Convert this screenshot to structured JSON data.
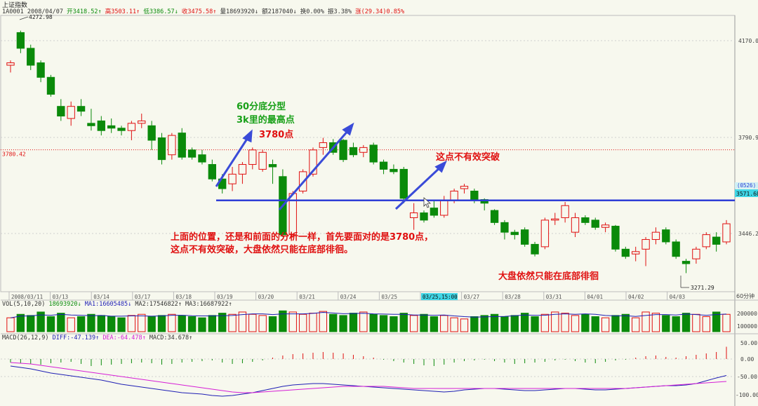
{
  "header": {
    "title": "上证指数",
    "code": "1A0001",
    "date": "2008/04/07",
    "open": "开3418.52↑",
    "high": "高3503.11↑",
    "low": "低3386.57↓",
    "close": "收3475.58↑",
    "volume": "量18693920↓",
    "amount": "额2187040↓",
    "turnover": "换0.00%",
    "amplitude": "振3.38%",
    "change": "涨(29.34)0.85%"
  },
  "price_axis": {
    "ticks": [
      "4170.0",
      "3790.9",
      "3446.2"
    ],
    "ref_label": "3780.42",
    "line_label_top": "(0526)",
    "line_label_value": "3571.68",
    "period": "60分钟"
  },
  "annotations": {
    "a1": "60分底分型",
    "a2": "3k里的最高点",
    "a3": "3780点",
    "a4": "这点不有效突破",
    "a5_line1": "上面的位置，还是和前面的分析一样，首先要面对的是3780点，",
    "a5_line2": "这点不有效突破，大盘依然只能在底部徘徊。",
    "a6": "大盘依然只能在底部徘徊",
    "high_label": "4272.98",
    "low_label": "3271.29"
  },
  "time_axis": [
    "2008/03/11",
    "03/13",
    "03/14",
    "03/17",
    "03/18",
    "03/19",
    "03/20",
    "03/21",
    "03/24",
    "03/25",
    "03/25,15:00",
    "03/27",
    "03/28",
    "03/31",
    "04/01",
    "04/02",
    "04/03"
  ],
  "vol_header": {
    "title": "VOL(5,10,20)",
    "v": "18693920↓",
    "ma1": "MA1:16605485↓",
    "ma2": "MA2:17546822↑",
    "ma3": "MA3:16687922↑",
    "ticks": [
      "200000",
      "100000"
    ]
  },
  "macd_header": {
    "title": "MACD(26,12,9)",
    "diff": "DIFF:-47.139↑",
    "dea": "DEA:-64.478↑",
    "macd": "MACD:34.678↑",
    "ticks": [
      "50.00",
      "0.00",
      "-50.00",
      "-100.00"
    ]
  },
  "colors": {
    "up": "#e01010",
    "down": "#0a8a0a",
    "trendline": "#2f3ed6",
    "ma1": "#1e1eb4",
    "ma2": "#d61ed6",
    "ann_green": "#18a018",
    "ann_red": "#e01010"
  },
  "chart_data": {
    "type": "candlestick",
    "title": "上证指数",
    "y_range": [
      3200,
      4330
    ],
    "candles": [
      {
        "o": 4130,
        "h": 4150,
        "l": 4100,
        "c": 4140
      },
      {
        "o": 4265,
        "h": 4273,
        "l": 4180,
        "c": 4200
      },
      {
        "o": 4200,
        "h": 4215,
        "l": 4110,
        "c": 4130
      },
      {
        "o": 4140,
        "h": 4150,
        "l": 4060,
        "c": 4080
      },
      {
        "o": 4080,
        "h": 4090,
        "l": 4000,
        "c": 4010
      },
      {
        "o": 3960,
        "h": 3990,
        "l": 3900,
        "c": 3920
      },
      {
        "o": 3910,
        "h": 3980,
        "l": 3880,
        "c": 3960
      },
      {
        "o": 3960,
        "h": 3990,
        "l": 3920,
        "c": 3940
      },
      {
        "o": 3890,
        "h": 3950,
        "l": 3860,
        "c": 3880
      },
      {
        "o": 3900,
        "h": 3920,
        "l": 3840,
        "c": 3860
      },
      {
        "o": 3880,
        "h": 3910,
        "l": 3850,
        "c": 3870
      },
      {
        "o": 3870,
        "h": 3880,
        "l": 3840,
        "c": 3860
      },
      {
        "o": 3860,
        "h": 3900,
        "l": 3820,
        "c": 3890
      },
      {
        "o": 3890,
        "h": 3930,
        "l": 3870,
        "c": 3900
      },
      {
        "o": 3880,
        "h": 3900,
        "l": 3780,
        "c": 3820
      },
      {
        "o": 3830,
        "h": 3850,
        "l": 3720,
        "c": 3740
      },
      {
        "o": 3760,
        "h": 3850,
        "l": 3740,
        "c": 3840
      },
      {
        "o": 3850,
        "h": 3870,
        "l": 3740,
        "c": 3750
      },
      {
        "o": 3780,
        "h": 3790,
        "l": 3740,
        "c": 3750
      },
      {
        "o": 3760,
        "h": 3780,
        "l": 3720,
        "c": 3730
      },
      {
        "o": 3720,
        "h": 3740,
        "l": 3650,
        "c": 3660
      },
      {
        "o": 3660,
        "h": 3680,
        "l": 3600,
        "c": 3620
      },
      {
        "o": 3640,
        "h": 3710,
        "l": 3610,
        "c": 3680
      },
      {
        "o": 3680,
        "h": 3730,
        "l": 3640,
        "c": 3720
      },
      {
        "o": 3720,
        "h": 3790,
        "l": 3700,
        "c": 3780
      },
      {
        "o": 3700,
        "h": 3780,
        "l": 3690,
        "c": 3770
      },
      {
        "o": 3720,
        "h": 3740,
        "l": 3640,
        "c": 3710
      },
      {
        "o": 3670,
        "h": 3700,
        "l": 3420,
        "c": 3430
      },
      {
        "o": 3430,
        "h": 3610,
        "l": 3420,
        "c": 3600
      },
      {
        "o": 3610,
        "h": 3700,
        "l": 3600,
        "c": 3690
      },
      {
        "o": 3680,
        "h": 3790,
        "l": 3670,
        "c": 3780
      },
      {
        "o": 3790,
        "h": 3830,
        "l": 3760,
        "c": 3810
      },
      {
        "o": 3810,
        "h": 3825,
        "l": 3760,
        "c": 3770
      },
      {
        "o": 3820,
        "h": 3825,
        "l": 3730,
        "c": 3740
      },
      {
        "o": 3790,
        "h": 3810,
        "l": 3750,
        "c": 3760
      },
      {
        "o": 3770,
        "h": 3800,
        "l": 3750,
        "c": 3790
      },
      {
        "o": 3800,
        "h": 3810,
        "l": 3720,
        "c": 3730
      },
      {
        "o": 3730,
        "h": 3740,
        "l": 3680,
        "c": 3700
      },
      {
        "o": 3700,
        "h": 3720,
        "l": 3680,
        "c": 3690
      },
      {
        "o": 3700,
        "h": 3710,
        "l": 3560,
        "c": 3580
      },
      {
        "o": 3500,
        "h": 3560,
        "l": 3450,
        "c": 3520
      },
      {
        "o": 3520,
        "h": 3530,
        "l": 3480,
        "c": 3490
      },
      {
        "o": 3540,
        "h": 3570,
        "l": 3500,
        "c": 3510
      },
      {
        "o": 3510,
        "h": 3590,
        "l": 3500,
        "c": 3570
      },
      {
        "o": 3570,
        "h": 3620,
        "l": 3560,
        "c": 3610
      },
      {
        "o": 3620,
        "h": 3640,
        "l": 3600,
        "c": 3630
      },
      {
        "o": 3610,
        "h": 3620,
        "l": 3560,
        "c": 3575
      },
      {
        "o": 3575,
        "h": 3580,
        "l": 3530,
        "c": 3560
      },
      {
        "o": 3530,
        "h": 3535,
        "l": 3470,
        "c": 3480
      },
      {
        "o": 3480,
        "h": 3490,
        "l": 3410,
        "c": 3440
      },
      {
        "o": 3440,
        "h": 3450,
        "l": 3410,
        "c": 3430
      },
      {
        "o": 3450,
        "h": 3460,
        "l": 3380,
        "c": 3390
      },
      {
        "o": 3390,
        "h": 3400,
        "l": 3340,
        "c": 3350
      },
      {
        "o": 3380,
        "h": 3500,
        "l": 3370,
        "c": 3490
      },
      {
        "o": 3490,
        "h": 3520,
        "l": 3470,
        "c": 3495
      },
      {
        "o": 3500,
        "h": 3565,
        "l": 3480,
        "c": 3550
      },
      {
        "o": 3440,
        "h": 3520,
        "l": 3420,
        "c": 3500
      },
      {
        "o": 3500,
        "h": 3510,
        "l": 3470,
        "c": 3480
      },
      {
        "o": 3490,
        "h": 3500,
        "l": 3450,
        "c": 3460
      },
      {
        "o": 3460,
        "h": 3480,
        "l": 3440,
        "c": 3470
      },
      {
        "o": 3465,
        "h": 3470,
        "l": 3360,
        "c": 3370
      },
      {
        "o": 3370,
        "h": 3380,
        "l": 3330,
        "c": 3340
      },
      {
        "o": 3350,
        "h": 3380,
        "l": 3320,
        "c": 3360
      },
      {
        "o": 3370,
        "h": 3420,
        "l": 3300,
        "c": 3410
      },
      {
        "o": 3410,
        "h": 3460,
        "l": 3390,
        "c": 3440
      },
      {
        "o": 3450,
        "h": 3460,
        "l": 3390,
        "c": 3400
      },
      {
        "o": 3400,
        "h": 3410,
        "l": 3330,
        "c": 3340
      },
      {
        "o": 3320,
        "h": 3330,
        "l": 3271,
        "c": 3310
      },
      {
        "o": 3330,
        "h": 3380,
        "l": 3310,
        "c": 3370
      },
      {
        "o": 3380,
        "h": 3440,
        "l": 3370,
        "c": 3430
      },
      {
        "o": 3420,
        "h": 3440,
        "l": 3360,
        "c": 3390
      },
      {
        "o": 3400,
        "h": 3490,
        "l": 3390,
        "c": 3475
      }
    ],
    "horizontal_line": 3571.68,
    "reference_line": 3780.42,
    "volume": [
      120,
      150,
      140,
      170,
      130,
      160,
      120,
      130,
      150,
      140,
      130,
      120,
      140,
      150,
      130,
      140,
      150,
      140,
      130,
      120,
      140,
      160,
      150,
      170,
      150,
      140,
      130,
      180,
      170,
      150,
      160,
      175,
      150,
      140,
      160,
      170,
      150,
      140,
      130,
      160,
      140,
      150,
      130,
      140,
      120,
      110,
      130,
      140,
      150,
      130,
      140,
      160,
      130,
      150,
      170,
      160,
      140,
      150,
      130,
      120,
      140,
      150,
      120,
      170,
      160,
      140,
      130,
      160,
      150,
      130,
      170,
      150
    ],
    "macd_hist": [
      -10,
      -12,
      -14,
      -16,
      -12,
      -10,
      -8,
      -14,
      -20,
      -18,
      -16,
      -14,
      -12,
      -10,
      -12,
      -16,
      -14,
      -10,
      -8,
      -6,
      -4,
      -10,
      -14,
      -12,
      -8,
      -4,
      4,
      10,
      14,
      16,
      18,
      20,
      18,
      16,
      12,
      8,
      4,
      -2,
      -6,
      -10,
      -14,
      -18,
      -20,
      -16,
      -10,
      -6,
      -4,
      -2,
      -6,
      -10,
      -14,
      -12,
      -10,
      -8,
      -4,
      -2,
      -6,
      -10,
      -12,
      -8,
      -4,
      -2,
      4,
      8,
      10,
      6,
      4,
      8,
      12,
      16,
      20,
      35
    ],
    "diff": [
      -20,
      -24,
      -28,
      -34,
      -40,
      -44,
      -48,
      -52,
      -56,
      -60,
      -66,
      -72,
      -76,
      -80,
      -84,
      -88,
      -92,
      -96,
      -98,
      -100,
      -104,
      -106,
      -104,
      -100,
      -96,
      -90,
      -84,
      -78,
      -74,
      -72,
      -70,
      -70,
      -72,
      -74,
      -76,
      -78,
      -80,
      -82,
      -84,
      -86,
      -88,
      -90,
      -92,
      -94,
      -92,
      -88,
      -86,
      -84,
      -84,
      -86,
      -88,
      -90,
      -90,
      -88,
      -86,
      -84,
      -84,
      -86,
      -88,
      -88,
      -86,
      -84,
      -82,
      -80,
      -78,
      -76,
      -76,
      -74,
      -70,
      -62,
      -54,
      -47
    ],
    "dea": [
      -10,
      -12,
      -14,
      -18,
      -22,
      -26,
      -30,
      -34,
      -38,
      -42,
      -46,
      -50,
      -54,
      -58,
      -62,
      -66,
      -70,
      -74,
      -78,
      -82,
      -86,
      -90,
      -94,
      -96,
      -96,
      -94,
      -92,
      -90,
      -88,
      -86,
      -84,
      -82,
      -80,
      -78,
      -78,
      -78,
      -78,
      -78,
      -80,
      -82,
      -84,
      -84,
      -84,
      -84,
      -84,
      -84,
      -84,
      -84,
      -84,
      -84,
      -84,
      -84,
      -84,
      -84,
      -84,
      -84,
      -84,
      -84,
      -84,
      -84,
      -84,
      -84,
      -82,
      -80,
      -78,
      -76,
      -74,
      -72,
      -70,
      -68,
      -66,
      -64
    ]
  }
}
